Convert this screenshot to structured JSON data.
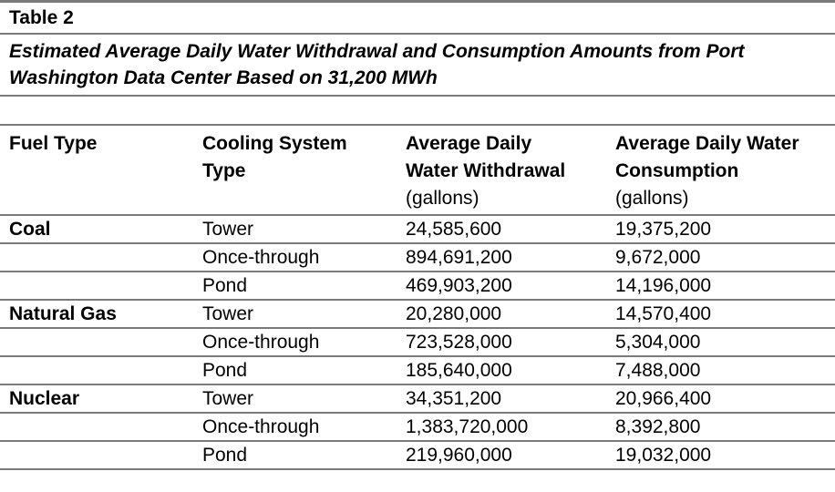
{
  "document": {
    "table_label": "Table 2",
    "caption_lines": [
      "Estimated Average Daily Water Withdrawal and Consumption Amounts from Port",
      "Washington Data Center Based on 31,200 MWh"
    ]
  },
  "table": {
    "columns": [
      {
        "title_lines": [
          "Fuel Type"
        ],
        "unit": ""
      },
      {
        "title_lines": [
          "Cooling System",
          "Type"
        ],
        "unit": ""
      },
      {
        "title_lines": [
          "Average Daily",
          "Water Withdrawal"
        ],
        "unit": "(gallons)"
      },
      {
        "title_lines": [
          "Average Daily Water",
          "Consumption"
        ],
        "unit": "(gallons)"
      }
    ],
    "rows": [
      {
        "fuel": "Coal",
        "cooling": "Tower",
        "withdrawal": "24,585,600",
        "consumption": "19,375,200"
      },
      {
        "fuel": "",
        "cooling": "Once-through",
        "withdrawal": "894,691,200",
        "consumption": "9,672,000"
      },
      {
        "fuel": "",
        "cooling": "Pond",
        "withdrawal": "469,903,200",
        "consumption": "14,196,000"
      },
      {
        "fuel": "Natural Gas",
        "cooling": "Tower",
        "withdrawal": "20,280,000",
        "consumption": "14,570,400"
      },
      {
        "fuel": "",
        "cooling": "Once-through",
        "withdrawal": "723,528,000",
        "consumption": "5,304,000"
      },
      {
        "fuel": "",
        "cooling": "Pond",
        "withdrawal": "185,640,000",
        "consumption": "7,488,000"
      },
      {
        "fuel": "Nuclear",
        "cooling": "Tower",
        "withdrawal": "34,351,200",
        "consumption": "20,966,400"
      },
      {
        "fuel": "",
        "cooling": "Once-through",
        "withdrawal": "1,383,720,000",
        "consumption": "8,392,800"
      },
      {
        "fuel": "",
        "cooling": "Pond",
        "withdrawal": "219,960,000",
        "consumption": "19,032,000"
      }
    ]
  },
  "colors": {
    "rule": "#7a7a7a",
    "text": "#000000",
    "background": "#ffffff"
  }
}
